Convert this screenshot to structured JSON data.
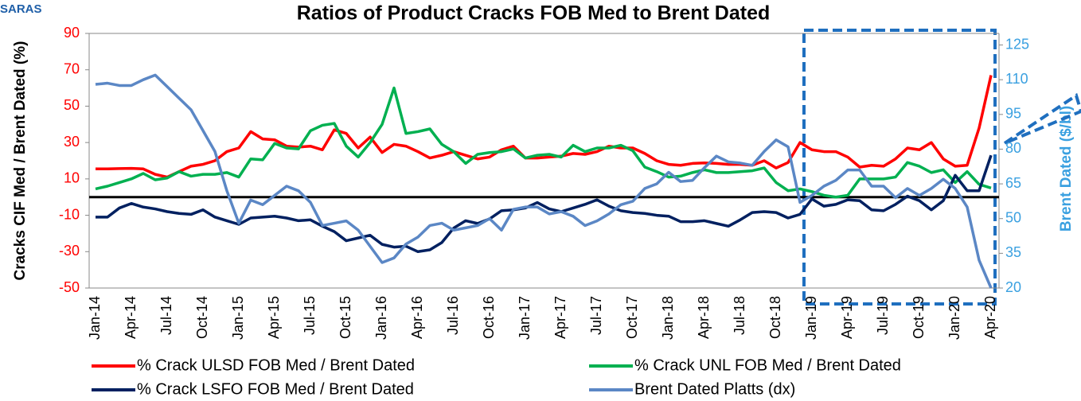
{
  "logo": "SARAS",
  "chart_data": {
    "type": "line",
    "title": "Ratios of Product Cracks FOB  Med to Brent Dated",
    "y_label": "Cracks CIF Med / Brent Dated (%)",
    "y2_label": "Brent Dated ($/bl)",
    "categories": [
      "Jan-14",
      null,
      null,
      "Apr-14",
      null,
      null,
      "Jul-14",
      null,
      null,
      "Oct-14",
      null,
      null,
      "Jan-15",
      null,
      null,
      "Apr-15",
      null,
      null,
      "Jul-15",
      null,
      null,
      "Oct-15",
      null,
      null,
      "Jan-16",
      null,
      null,
      "Apr-16",
      null,
      null,
      "Jul-16",
      null,
      null,
      "Oct-16",
      null,
      null,
      "Jan-17",
      null,
      null,
      "Apr-17",
      null,
      null,
      "Jul-17",
      null,
      null,
      "Oct-17",
      null,
      null,
      "Jan-18",
      null,
      null,
      "Apr-18",
      null,
      null,
      "Jul-18",
      null,
      null,
      "Oct-18",
      null,
      null,
      "Jan-19",
      null,
      null,
      "Apr-19",
      null,
      null,
      "Jul-19",
      null,
      null,
      "Oct-19",
      null,
      null,
      "Jan-20",
      null,
      null,
      "Apr-20"
    ],
    "series": [
      {
        "name": "% Crack ULSD FOB Med / Brent Dated",
        "color": "#ff0000",
        "values": [
          15.5,
          15.5,
          15.7,
          15.8,
          15.5,
          12.5,
          11,
          14,
          17,
          18,
          20,
          25,
          27,
          36,
          32,
          31.5,
          28,
          27.5,
          28,
          26,
          37,
          35,
          27,
          33,
          24.5,
          29,
          28,
          25,
          21.5,
          23,
          25,
          23,
          21,
          22,
          26,
          28,
          21.5,
          21.5,
          22,
          22.5,
          24,
          23.5,
          25,
          28,
          27,
          27,
          24,
          20,
          18,
          17.5,
          18.5,
          18.8,
          18.5,
          18,
          18,
          17.5,
          20,
          16,
          19,
          30,
          26,
          25,
          25,
          22,
          16.5,
          17.5,
          17,
          21,
          27,
          26,
          30,
          21,
          17,
          17.5,
          38,
          67
        ]
      },
      {
        "name": "% Crack UNL FOB Med / Brent Dated",
        "color": "#00b050",
        "values": [
          4.5,
          6,
          8,
          10,
          13,
          9.5,
          10.5,
          14,
          11.5,
          12.5,
          12.5,
          13.5,
          11,
          21,
          20.5,
          29.5,
          27,
          26.5,
          36.5,
          39.5,
          40.5,
          28,
          22,
          30,
          40,
          60,
          35,
          36,
          37.5,
          29,
          25,
          18.5,
          23.5,
          24.5,
          25,
          26.5,
          21.5,
          23,
          23.5,
          22,
          28.5,
          25,
          27,
          27,
          28.5,
          25.5,
          16.5,
          14,
          11,
          11.5,
          13.5,
          15,
          13.5,
          13.5,
          14,
          14.5,
          16,
          8,
          3.5,
          4.5,
          3,
          1,
          0,
          1,
          10,
          10,
          10,
          11,
          19,
          17,
          13.5,
          15,
          8,
          14,
          7,
          5
        ]
      },
      {
        "name": "% Crack LSFO FOB Med / Brent Dated",
        "color": "#002060",
        "values": [
          -11,
          -11,
          -6,
          -3.5,
          -5.5,
          -6.5,
          -8,
          -9,
          -9.5,
          -7,
          -11,
          -13,
          -15,
          -11.5,
          -11,
          -10.5,
          -11.5,
          -13,
          -12.5,
          -16,
          -19,
          -24,
          -22.5,
          -21,
          -26,
          -27.5,
          -27,
          -30,
          -29,
          -25,
          -17,
          -13,
          -14.5,
          -12,
          -7.5,
          -7,
          -6,
          -3,
          -6.5,
          -8,
          -6,
          -4,
          -1.5,
          -5,
          -7.5,
          -8.5,
          -9,
          -10,
          -10.5,
          -13.5,
          -13.5,
          -13,
          -14.5,
          -16,
          -12.5,
          -8.5,
          -8,
          -8.5,
          -11.5,
          -9.5,
          -1,
          -5,
          -4,
          -1.5,
          -2,
          -7,
          -7.5,
          -4,
          0.5,
          -2,
          -7,
          -2,
          12,
          3.5,
          3.5,
          23
        ]
      },
      {
        "name": "Brent Dated Platts (dx)",
        "color": "#5b87c5",
        "axis": "y2",
        "values": [
          108,
          108.5,
          107.5,
          107.5,
          110,
          112,
          107,
          102,
          97,
          88,
          79,
          62,
          48,
          58,
          56,
          60,
          64,
          62,
          57,
          47,
          48,
          49,
          45,
          38,
          31,
          33,
          39,
          42,
          47,
          48,
          45,
          46,
          47,
          50,
          45,
          54,
          55,
          55,
          52,
          53,
          51,
          47,
          49,
          52,
          56,
          57.5,
          63,
          65,
          70,
          66,
          66.5,
          72,
          77,
          74.5,
          74,
          73,
          79,
          84,
          81,
          57,
          60,
          64,
          66.5,
          71,
          71,
          64,
          64,
          59,
          63,
          60,
          63,
          67,
          63,
          55,
          32,
          20
        ]
      }
    ],
    "ylim": [
      -50,
      90
    ],
    "yticks": [
      -50,
      -30,
      -10,
      10,
      30,
      50,
      70,
      90
    ],
    "y2lim": [
      20,
      130
    ],
    "y2ticks": [
      20,
      35,
      50,
      65,
      80,
      95,
      110,
      125
    ]
  }
}
